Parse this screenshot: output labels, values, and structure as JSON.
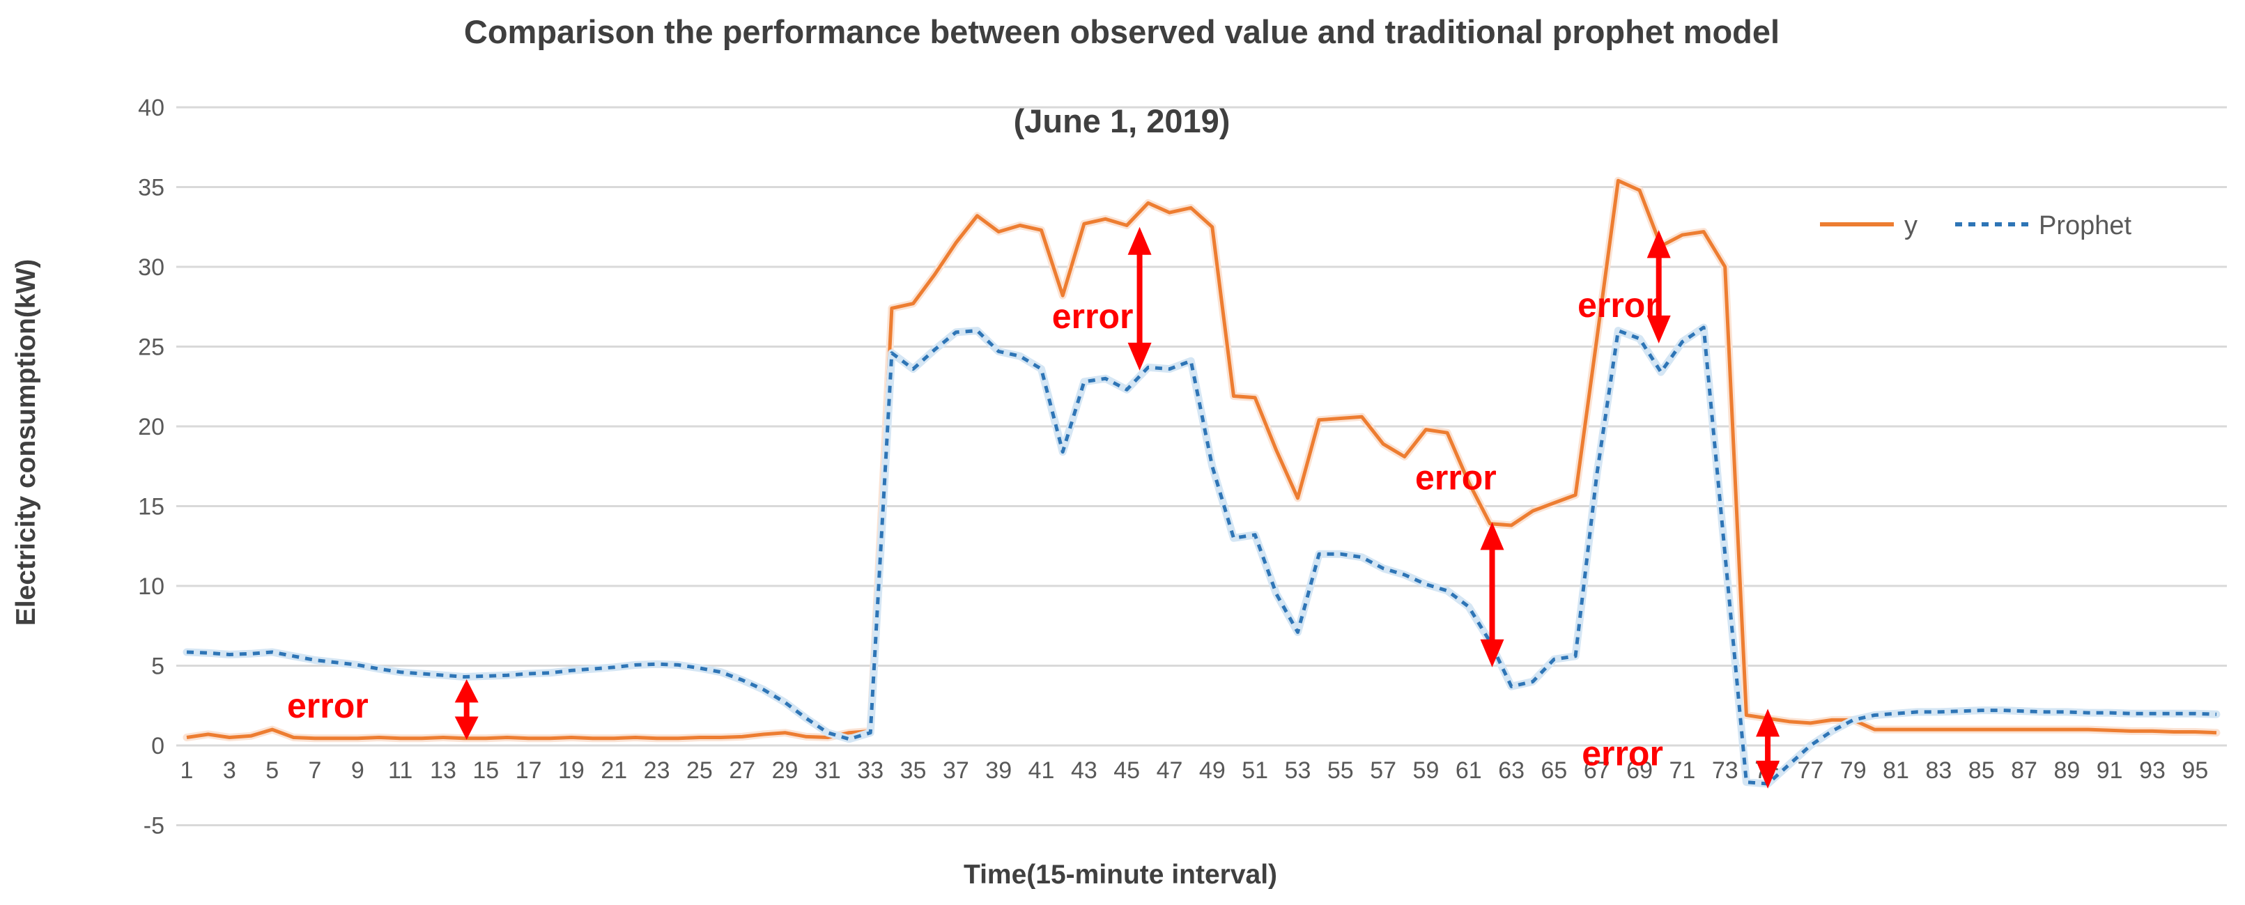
{
  "chart_data": {
    "type": "line",
    "title": "Comparison the performance between observed value and traditional prophet model",
    "subtitle": "(June 1, 2019)",
    "xlabel": "Time(15-minute interval)",
    "ylabel": "Electricity consumption(kW)",
    "ylim": [
      -5,
      40
    ],
    "ytick_step": 5,
    "grid": "horizontal",
    "legend_position": "inside-top-right",
    "n_points": 96,
    "xticks": [
      1,
      3,
      5,
      7,
      9,
      11,
      13,
      15,
      17,
      19,
      21,
      23,
      25,
      27,
      29,
      31,
      33,
      35,
      37,
      39,
      41,
      43,
      45,
      47,
      49,
      51,
      53,
      55,
      57,
      59,
      61,
      63,
      65,
      67,
      69,
      71,
      73,
      75,
      77,
      79,
      81,
      83,
      85,
      87,
      89,
      91,
      93,
      95
    ],
    "series": [
      {
        "name": "y",
        "style": "solid",
        "color": "#ED7D31",
        "halo_color": "#FBE3D4",
        "values": [
          0.5,
          0.7,
          0.5,
          0.6,
          1.0,
          0.5,
          0.45,
          0.45,
          0.45,
          0.5,
          0.45,
          0.45,
          0.5,
          0.45,
          0.45,
          0.5,
          0.45,
          0.45,
          0.5,
          0.45,
          0.45,
          0.5,
          0.45,
          0.45,
          0.5,
          0.5,
          0.55,
          0.7,
          0.8,
          0.55,
          0.5,
          0.8,
          0.9,
          27.4,
          27.7,
          29.5,
          31.5,
          33.2,
          32.2,
          32.6,
          32.3,
          28.2,
          32.7,
          33.0,
          32.6,
          34.0,
          33.4,
          33.7,
          32.5,
          21.9,
          21.8,
          18.5,
          15.5,
          20.4,
          20.5,
          20.6,
          18.9,
          18.1,
          19.8,
          19.6,
          16.5,
          13.9,
          13.8,
          14.7,
          15.2,
          15.7,
          25.5,
          35.4,
          34.8,
          31.3,
          32.0,
          32.2,
          30.0,
          1.9,
          1.7,
          1.5,
          1.4,
          1.6,
          1.6,
          1.0,
          1.0,
          1.0,
          1.0,
          1.0,
          1.0,
          1.0,
          1.0,
          1.0,
          1.0,
          1.0,
          0.95,
          0.9,
          0.9,
          0.85,
          0.85,
          0.8
        ]
      },
      {
        "name": "Prophet",
        "style": "dashed",
        "color": "#2E75B6",
        "halo_color": "#D5E6F4",
        "values": [
          5.85,
          5.8,
          5.7,
          5.75,
          5.85,
          5.6,
          5.35,
          5.2,
          5.05,
          4.8,
          4.6,
          4.5,
          4.4,
          4.3,
          4.35,
          4.4,
          4.5,
          4.55,
          4.7,
          4.8,
          4.9,
          5.05,
          5.1,
          5.05,
          4.85,
          4.6,
          4.1,
          3.5,
          2.7,
          1.7,
          0.8,
          0.4,
          0.8,
          24.6,
          23.6,
          24.8,
          25.9,
          26.0,
          24.7,
          24.4,
          23.6,
          18.4,
          22.8,
          23.0,
          22.3,
          23.7,
          23.6,
          24.1,
          17.5,
          13.0,
          13.2,
          9.5,
          7.1,
          12.0,
          12.0,
          11.8,
          11.1,
          10.7,
          10.1,
          9.7,
          8.7,
          6.5,
          3.7,
          4.0,
          5.4,
          5.6,
          17.0,
          26.0,
          25.5,
          23.4,
          25.3,
          26.2,
          12.0,
          -2.3,
          -2.4,
          -1.2,
          0.0,
          0.9,
          1.6,
          1.9,
          2.0,
          2.1,
          2.1,
          2.15,
          2.2,
          2.2,
          2.15,
          2.1,
          2.1,
          2.05,
          2.05,
          2.0,
          2.0,
          2.0,
          2.0,
          1.95
        ]
      }
    ],
    "annotations": {
      "label": "error",
      "color": "#FF0000",
      "items": [
        {
          "text": {
            "t": 7.6,
            "v": 2.5
          },
          "arrow": {
            "t": 14.1,
            "v1": 0.35,
            "v2": 4.15
          }
        },
        {
          "text": {
            "t": 43.4,
            "v": 26.9
          },
          "arrow": {
            "t": 45.6,
            "v1": 23.5,
            "v2": 32.5
          }
        },
        {
          "text": {
            "t": 60.4,
            "v": 16.8
          },
          "arrow": {
            "t": 62.1,
            "v1": 4.9,
            "v2": 14.0
          }
        },
        {
          "text": {
            "t": 68.0,
            "v": 27.6
          },
          "arrow": {
            "t": 69.9,
            "v1": 25.2,
            "v2": 32.3
          }
        },
        {
          "text": {
            "t": 68.2,
            "v": -0.5
          },
          "arrow": {
            "t": 75.0,
            "v1": -2.7,
            "v2": 2.3
          }
        }
      ]
    },
    "grid_color": "#D9D9D9",
    "text_color": "#595959"
  }
}
